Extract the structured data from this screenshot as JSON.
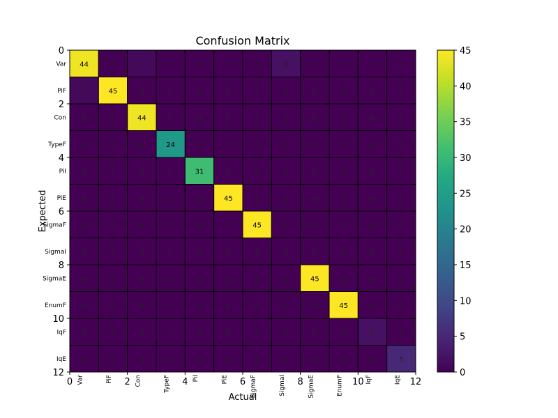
{
  "chart_data": {
    "type": "heatmap",
    "title": "Confusion Matrix",
    "xlabel": "Actual",
    "ylabel": "Expected",
    "labels": [
      "Var",
      "PiF",
      "Con",
      "TypeF",
      "PiI",
      "PiE",
      "SigmaF",
      "SigmaI",
      "SigmaE",
      "EnumF",
      "IqF",
      "IqE"
    ],
    "axis_ticks": [
      "0",
      "2",
      "4",
      "6",
      "8",
      "10",
      "12"
    ],
    "matrix": [
      [
        44,
        0,
        1,
        0,
        0,
        0,
        0,
        2,
        0,
        0,
        0,
        0
      ],
      [
        1,
        45,
        0,
        0,
        0,
        0,
        0,
        0,
        0,
        0,
        0,
        0
      ],
      [
        0,
        0,
        44,
        0,
        0,
        0,
        0,
        0,
        0,
        0,
        0,
        0
      ],
      [
        0,
        0,
        0,
        24,
        0,
        0,
        0,
        0,
        0,
        0,
        0,
        0
      ],
      [
        0,
        0,
        0,
        0,
        31,
        0,
        0,
        0,
        0,
        0,
        0,
        0
      ],
      [
        0,
        0,
        0,
        0,
        0,
        45,
        0,
        0,
        0,
        0,
        0,
        0
      ],
      [
        0,
        0,
        0,
        0,
        0,
        0,
        45,
        0,
        0,
        0,
        0,
        0
      ],
      [
        0,
        0,
        0,
        0,
        0,
        0,
        0,
        0,
        0,
        0,
        0,
        0
      ],
      [
        0,
        0,
        0,
        0,
        0,
        0,
        0,
        0,
        45,
        0,
        0,
        0
      ],
      [
        0,
        0,
        0,
        0,
        0,
        0,
        0,
        0,
        0,
        45,
        0,
        0
      ],
      [
        0,
        0,
        0,
        0,
        0,
        0,
        0,
        0,
        0,
        0,
        2,
        0
      ],
      [
        0,
        0,
        0,
        0,
        0,
        0,
        0,
        0,
        0,
        0,
        0,
        5
      ]
    ],
    "colorbar": {
      "colormap": "viridis",
      "range": [
        0,
        45
      ],
      "ticks": [
        "0",
        "5",
        "10",
        "15",
        "20",
        "25",
        "30",
        "35",
        "40",
        "45"
      ]
    },
    "grid": false
  }
}
